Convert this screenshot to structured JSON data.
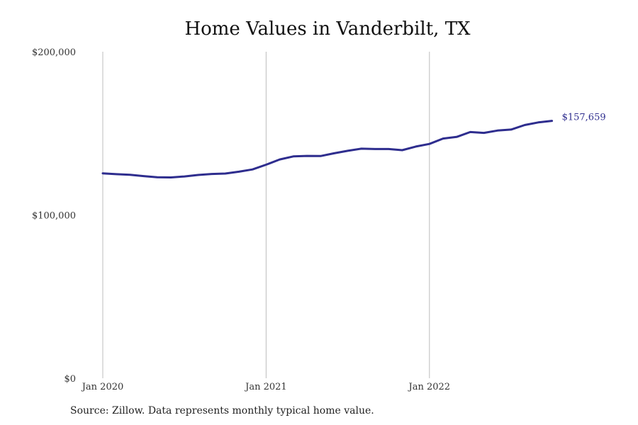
{
  "chart_data": {
    "type": "line",
    "title": "Home Values in Vanderbilt, TX",
    "xlabel": "",
    "ylabel": "",
    "ylim": [
      0,
      200000
    ],
    "yticks": [
      {
        "value": 0,
        "label": "$0"
      },
      {
        "value": 100000,
        "label": "$100,000"
      },
      {
        "value": 200000,
        "label": "$200,000"
      }
    ],
    "xticks": [
      {
        "index": 0,
        "label": "Jan 2020"
      },
      {
        "index": 12,
        "label": "Jan 2021"
      },
      {
        "index": 24,
        "label": "Jan 2022"
      }
    ],
    "grid": "vertical",
    "line_color": "#2e2d8e",
    "series": [
      {
        "name": "",
        "x": [
          "2020-01",
          "2020-02",
          "2020-03",
          "2020-04",
          "2020-05",
          "2020-06",
          "2020-07",
          "2020-08",
          "2020-09",
          "2020-10",
          "2020-11",
          "2020-12",
          "2021-01",
          "2021-02",
          "2021-03",
          "2021-04",
          "2021-05",
          "2021-06",
          "2021-07",
          "2021-08",
          "2021-09",
          "2021-10",
          "2021-11",
          "2021-12",
          "2022-01",
          "2022-02",
          "2022-03",
          "2022-04",
          "2022-05",
          "2022-06",
          "2022-07",
          "2022-08",
          "2022-09",
          "2022-10"
        ],
        "values": [
          125500,
          125000,
          124600,
          123800,
          123100,
          123000,
          123600,
          124500,
          125100,
          125400,
          126500,
          127900,
          130800,
          134000,
          135900,
          136200,
          136100,
          137800,
          139300,
          140600,
          140400,
          140400,
          139700,
          141900,
          143500,
          146800,
          147800,
          150800,
          150300,
          151700,
          152300,
          155100,
          156700,
          157659
        ]
      }
    ],
    "end_label": "$157,659"
  },
  "source": "Source: Zillow. Data represents monthly typical home value."
}
